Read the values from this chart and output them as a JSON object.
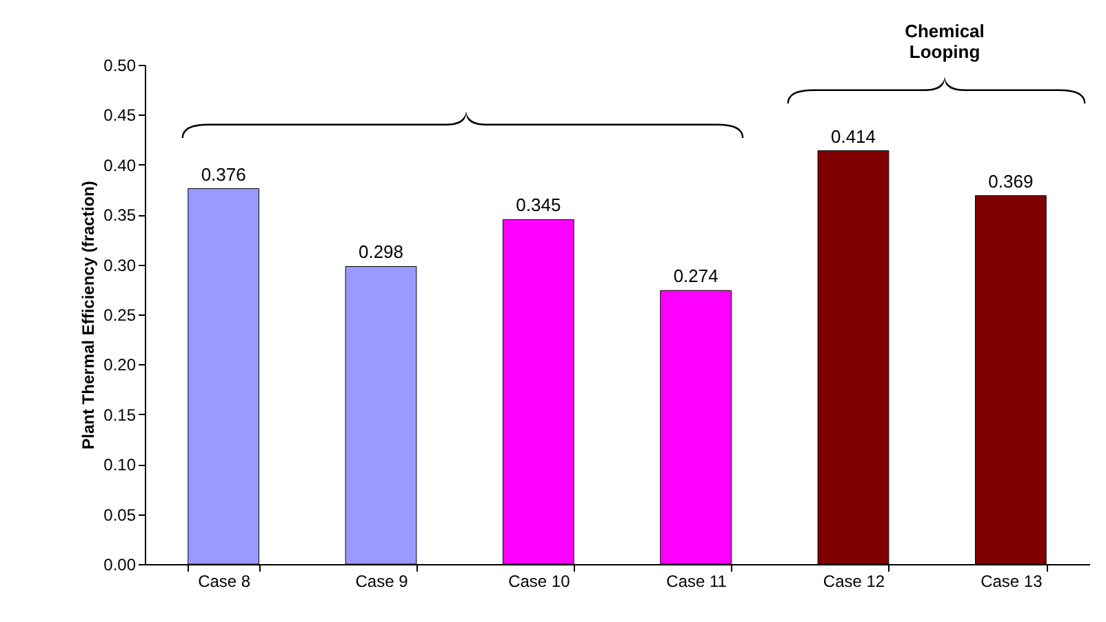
{
  "chart_data": {
    "type": "bar",
    "ylabel": "Plant Thermal Efficiency (fraction)",
    "categories": [
      "Case 8",
      "Case 9",
      "Case 10",
      "Case 11",
      "Case 12",
      "Case 13"
    ],
    "values": [
      0.376,
      0.298,
      0.345,
      0.274,
      0.414,
      0.369
    ],
    "colors": [
      "#9999ff",
      "#9999ff",
      "#ff00ff",
      "#ff00ff",
      "#800000",
      "#800000"
    ],
    "ylim": [
      0,
      0.5
    ],
    "yticks": [
      {
        "value": 0,
        "label": "0.00"
      },
      {
        "value": 0.05,
        "label": "0.05"
      },
      {
        "value": 0.1,
        "label": "0.10"
      },
      {
        "value": 0.15,
        "label": "0.15"
      },
      {
        "value": 0.2,
        "label": "0.20"
      },
      {
        "value": 0.25,
        "label": "0.25"
      },
      {
        "value": 0.3,
        "label": "0.30"
      },
      {
        "value": 0.35,
        "label": "0.35"
      },
      {
        "value": 0.4,
        "label": "0.40"
      },
      {
        "value": 0.45,
        "label": "0.45"
      },
      {
        "value": 0.5,
        "label": "0.50"
      }
    ],
    "data_labels": true,
    "grid": false,
    "legend": false,
    "annotations": [
      "Chemical Looping"
    ]
  }
}
